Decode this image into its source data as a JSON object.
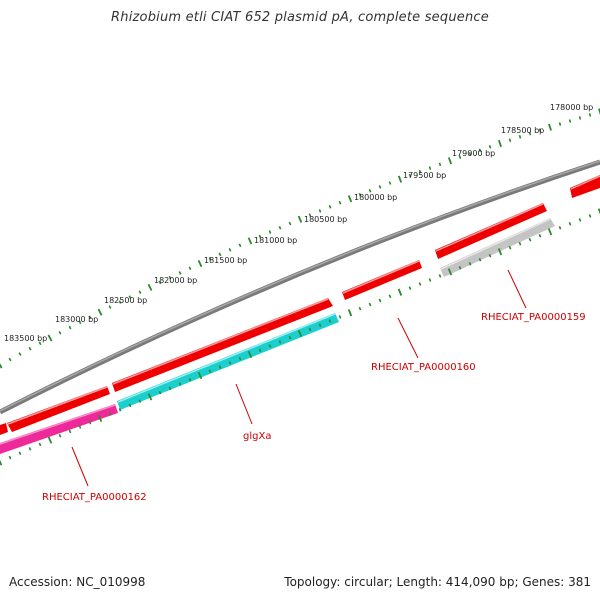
{
  "title": "Rhizobium etli CIAT 652 plasmid pA, complete sequence",
  "accession": "Accession: NC_010998",
  "topology": "Topology: circular; Length: 414,090 bp; Genes: 381",
  "colors": {
    "backbone": "#7a7a7a",
    "forward_gene": "#ee0000",
    "glgXa_gene": "#1ccfcf",
    "pseudo_gene": "#c4c4c4",
    "magenta_gene": "#ee2a9a",
    "tick": "#2a8a2a",
    "label": "#cc0000"
  },
  "ruler": {
    "tick_labels": [
      "178000 bp",
      "178500 bp",
      "179000 bp",
      "179500 bp",
      "180000 bp",
      "180500 bp",
      "181000 bp",
      "181500 bp",
      "182000 bp",
      "182500 bp",
      "183000 bp",
      "183500 bp"
    ]
  },
  "genes": [
    {
      "label": "RHECIAT_PA0000159"
    },
    {
      "label": "RHECIAT_PA0000160"
    },
    {
      "label": "glgXa"
    },
    {
      "label": "RHECIAT_PA0000162"
    }
  ]
}
